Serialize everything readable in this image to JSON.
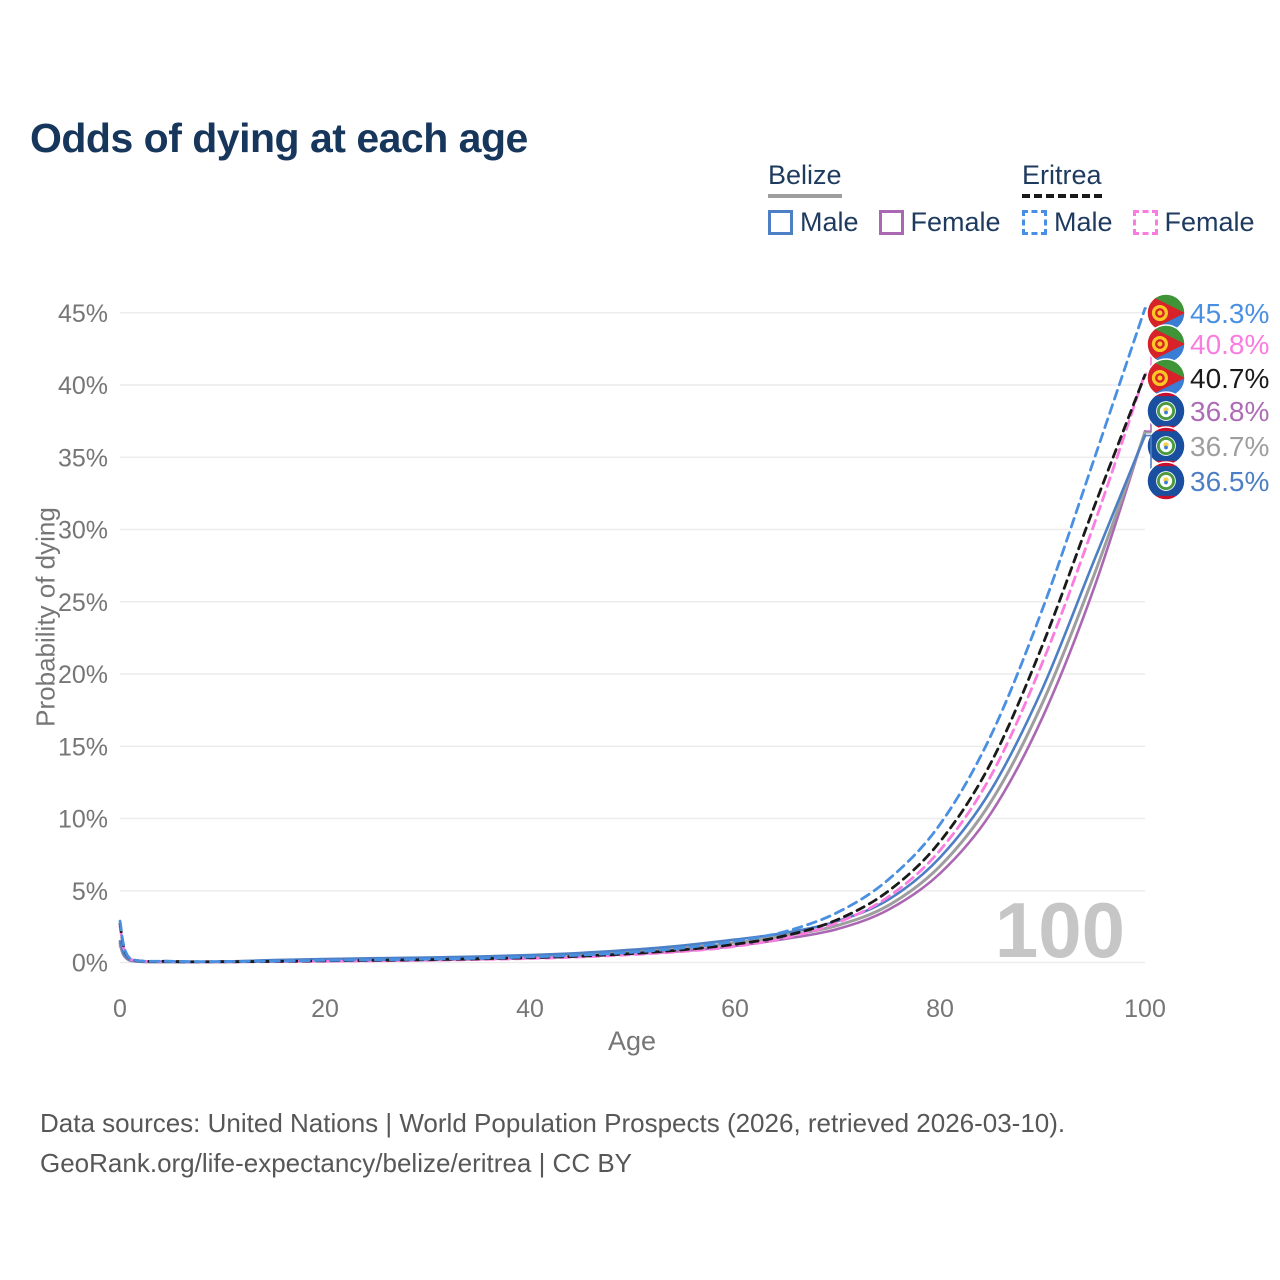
{
  "title": "Odds of dying at each age",
  "watermark": "100",
  "legend": {
    "belize": {
      "title": "Belize",
      "male": "Male",
      "female": "Female"
    },
    "eritrea": {
      "title": "Eritrea",
      "male": "Male",
      "female": "Female"
    }
  },
  "footer": {
    "line1": "Data sources: United Nations | World Population Prospects (2026, retrieved 2026-03-10).",
    "line2": "GeoRank.org/life-expectancy/belize/eritrea | CC BY"
  },
  "colors": {
    "title_navy": "#17365c",
    "belize_male": "#4d7fc4",
    "belize_female": "#ab68b2",
    "belize_both": "#9e9e9e",
    "eritrea_male": "#4a90e2",
    "eritrea_female": "#fb7ce0",
    "eritrea_both": "#1a1a1a",
    "grid": "#ececec",
    "tick_text": "#767676",
    "watermark_gray": "#c6c6c6"
  },
  "chart_data": {
    "type": "line",
    "title": "Odds of dying at each age",
    "xlabel": "Age",
    "ylabel": "Probability of dying",
    "x_ticks": [
      0,
      20,
      40,
      60,
      80,
      100
    ],
    "y_ticks_percent": [
      0,
      5,
      10,
      15,
      20,
      25,
      30,
      35,
      40,
      45
    ],
    "xlim": [
      0,
      100
    ],
    "ylim_percent": [
      0,
      46
    ],
    "grid": "horizontal-only",
    "legend_position": "top-right",
    "hovered_age": 100,
    "ages": [
      0,
      1,
      5,
      10,
      15,
      20,
      25,
      30,
      35,
      40,
      45,
      50,
      55,
      60,
      65,
      70,
      75,
      80,
      85,
      90,
      95,
      100
    ],
    "series": [
      {
        "id": "belize_male",
        "name": "Belize Male",
        "color": "#4d7fc4",
        "style": "solid",
        "width": 2.6,
        "values": [
          1.5,
          0.2,
          0.08,
          0.1,
          0.2,
          0.28,
          0.33,
          0.38,
          0.45,
          0.55,
          0.7,
          0.92,
          1.22,
          1.62,
          2.1,
          2.9,
          4.4,
          7.3,
          12.0,
          19.0,
          27.8,
          36.5
        ]
      },
      {
        "id": "belize_female",
        "name": "Belize Female",
        "color": "#ab68b2",
        "style": "solid",
        "width": 2.6,
        "values": [
          1.2,
          0.16,
          0.06,
          0.07,
          0.1,
          0.13,
          0.16,
          0.2,
          0.26,
          0.34,
          0.45,
          0.62,
          0.84,
          1.18,
          1.68,
          2.35,
          3.7,
          6.2,
          10.4,
          17.0,
          25.9,
          36.8
        ]
      },
      {
        "id": "belize_both",
        "name": "Belize (both sexes)",
        "color": "#9e9e9e",
        "style": "solid",
        "width": 3,
        "values": [
          1.35,
          0.18,
          0.07,
          0.08,
          0.14,
          0.2,
          0.24,
          0.29,
          0.35,
          0.44,
          0.57,
          0.76,
          1.02,
          1.4,
          1.9,
          2.6,
          4.0,
          6.7,
          11.2,
          18.0,
          26.8,
          36.7
        ]
      },
      {
        "id": "eritrea_male",
        "name": "Eritrea Male",
        "color": "#4a90e2",
        "style": "dashed",
        "dash": "9 6",
        "width": 2.8,
        "values": [
          2.9,
          0.3,
          0.12,
          0.1,
          0.13,
          0.18,
          0.22,
          0.27,
          0.33,
          0.42,
          0.55,
          0.75,
          1.05,
          1.5,
          2.2,
          3.5,
          5.8,
          9.6,
          15.8,
          24.5,
          34.8,
          45.3
        ]
      },
      {
        "id": "eritrea_female",
        "name": "Eritrea Female",
        "color": "#fb7ce0",
        "style": "dashed",
        "dash": "9 6",
        "width": 2.8,
        "values": [
          2.5,
          0.26,
          0.1,
          0.08,
          0.1,
          0.12,
          0.15,
          0.19,
          0.24,
          0.31,
          0.42,
          0.58,
          0.8,
          1.15,
          1.75,
          2.8,
          4.6,
          7.8,
          13.0,
          20.8,
          30.3,
          40.8
        ]
      },
      {
        "id": "eritrea_both",
        "name": "Eritrea (both sexes)",
        "color": "#1a1a1a",
        "style": "dashed",
        "dash": "8 6",
        "width": 2.8,
        "values": [
          2.7,
          0.28,
          0.11,
          0.09,
          0.11,
          0.15,
          0.19,
          0.23,
          0.29,
          0.37,
          0.48,
          0.66,
          0.92,
          1.3,
          1.9,
          3.0,
          5.0,
          8.4,
          13.9,
          22.0,
          31.5,
          40.7
        ]
      }
    ],
    "end_labels": [
      {
        "text": "45.3%",
        "value": 45.3,
        "series": "eritrea_male",
        "flag": "eritrea",
        "color": "#4a90e2"
      },
      {
        "text": "40.8%",
        "value": 40.8,
        "series": "eritrea_female",
        "flag": "eritrea",
        "color": "#fb7ce0"
      },
      {
        "text": "40.7%",
        "value": 40.7,
        "series": "eritrea_both",
        "flag": "eritrea",
        "color": "#1a1a1a"
      },
      {
        "text": "36.8%",
        "value": 36.8,
        "series": "belize_female",
        "flag": "belize",
        "color": "#ad6cb5"
      },
      {
        "text": "36.7%",
        "value": 36.7,
        "series": "belize_both",
        "flag": "belize",
        "color": "#9e9e9e"
      },
      {
        "text": "36.5%",
        "value": 36.5,
        "series": "belize_male",
        "flag": "belize",
        "color": "#4d7fc4"
      }
    ]
  }
}
